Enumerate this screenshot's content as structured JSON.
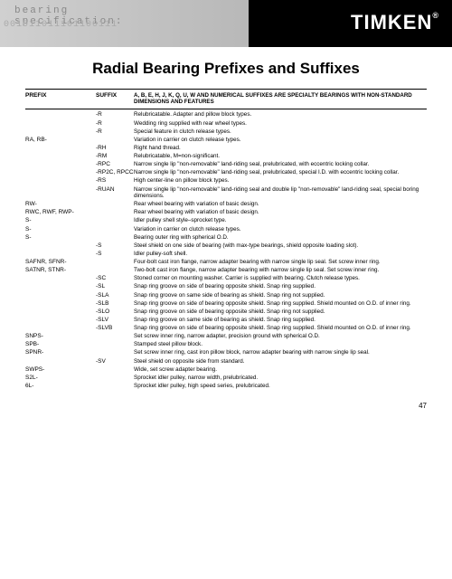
{
  "header": {
    "bearing_spec": "bearing",
    "spec_line": "specification:",
    "binary": "001011011101100111",
    "brand": "TIMKEN"
  },
  "title": "Radial Bearing Prefixes and Suffixes",
  "columns": {
    "prefix": "PREFIX",
    "suffix": "SUFFIX",
    "desc": "A, B, E, H, J, K, Q, U, W AND NUMERICAL SUFFIXES ARE SPECIALTY BEARINGS WITH NON-STANDARD DIMENSIONS AND FEATURES"
  },
  "rows": [
    {
      "p": "",
      "s": "-R",
      "d": "Relubricatable. Adapter and pillow block types."
    },
    {
      "p": "",
      "s": "-R",
      "d": "Wedding ring supplied with rear wheel types."
    },
    {
      "p": "",
      "s": "-R",
      "d": "Special feature in clutch release types."
    },
    {
      "p": "RA, RB-",
      "s": "",
      "d": "Variation in carrier on clutch release types."
    },
    {
      "p": "",
      "s": "-RH",
      "d": "Right hand thread."
    },
    {
      "p": "",
      "s": "-RM",
      "d": "Relubricatable, M=non-significant."
    },
    {
      "p": "",
      "s": "-RPC",
      "d": "Narrow single lip \"non-removable\" land-riding seal, prelubricated, with eccentric locking collar."
    },
    {
      "p": "",
      "s": "-RP2C, RPCC",
      "d": "Narrow single lip \"non-removable\" land-riding seal, prelubricated, special I.D. with eccentric locking collar."
    },
    {
      "p": "",
      "s": "-RS",
      "d": "High center-line on pillow block types."
    },
    {
      "p": "",
      "s": "-RUAN",
      "d": "Narrow single lip \"non-removable\" land-riding seal and double lip \"non-removable\" land-riding seal, special boring dimensions."
    },
    {
      "p": "RW-",
      "s": "",
      "d": "Rear wheel bearing with variation of basic design."
    },
    {
      "p": "RWC, RWF, RWP-",
      "s": "",
      "d": "Rear wheel bearing with variation of basic design."
    },
    {
      "p": "S-",
      "s": "",
      "d": "Idler pulley shell style–sprocket type."
    },
    {
      "p": "S-",
      "s": "",
      "d": "Variation in carrier on clutch release types."
    },
    {
      "p": "S-",
      "s": "",
      "d": "Bearing outer ring with spherical O.D."
    },
    {
      "p": "",
      "s": "-S",
      "d": "Steel shield on one side of bearing (with max-type bearings, shield opposite loading slot)."
    },
    {
      "p": "",
      "s": "-S",
      "d": "Idler pulley-soft shell."
    },
    {
      "p": "SAFNR, SFNR-",
      "s": "",
      "d": "Four-bolt cast iron flange, narrow adapter bearing with narrow single lip seal. Set screw inner ring."
    },
    {
      "p": "SATNR, STNR-",
      "s": "",
      "d": "Two-bolt cast iron flange, narrow adapter bearing with narrow single lip seal. Set screw inner ring."
    },
    {
      "p": "",
      "s": "-SC",
      "d": "Stoned corner on mounting washer. Carrier is supplied with bearing. Clutch release types."
    },
    {
      "p": "",
      "s": "-SL",
      "d": "Snap ring groove on side of bearing opposite shield. Snap ring supplied."
    },
    {
      "p": "",
      "s": "-SLA",
      "d": "Snap ring groove on same side of bearing as shield. Snap ring not supplied."
    },
    {
      "p": "",
      "s": "-SLB",
      "d": "Snap ring groove on side of bearing opposite shield. Snap ring supplied. Shield mounted on O.D. of inner ring."
    },
    {
      "p": "",
      "s": "-SLO",
      "d": "Snap ring groove on side of bearing opposite shield. Snap ring not supplied."
    },
    {
      "p": "",
      "s": "-SLV",
      "d": "Snap ring groove on same side of bearing as shield. Snap ring supplied."
    },
    {
      "p": "",
      "s": "-SLVB",
      "d": "Snap ring groove on side of bearing opposite shield. Snap ring supplied. Shield mounted on O.D. of inner ring."
    },
    {
      "p": "SNPS-",
      "s": "",
      "d": "Set screw inner ring, narrow adapter, precision ground with spherical O.D."
    },
    {
      "p": "SPB-",
      "s": "",
      "d": "Stamped steel pillow block."
    },
    {
      "p": "SPNR-",
      "s": "",
      "d": "Set screw inner ring, cast iron pillow block, narrow adapter bearing with narrow single lip seal."
    },
    {
      "p": "",
      "s": "-SV",
      "d": "Steel shield on opposite side from standard."
    },
    {
      "p": "SWPS-",
      "s": "",
      "d": "Wide, set screw adapter bearing."
    },
    {
      "p": "S2L-",
      "s": "",
      "d": "Sprocket idler pulley, narrow width, prelubricated."
    },
    {
      "p": "6L-",
      "s": "",
      "d": "Sprocket idler pulley, high speed series, prelubricated."
    }
  ],
  "page_number": "47"
}
